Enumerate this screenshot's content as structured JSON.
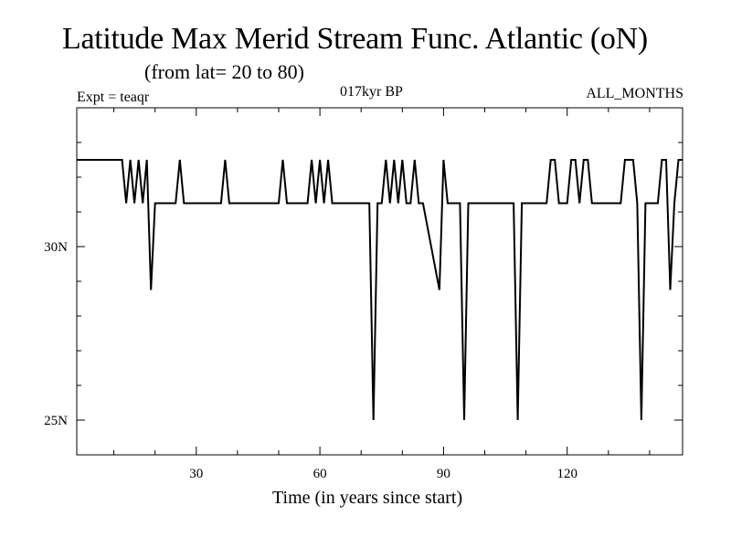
{
  "chart_data": {
    "type": "line",
    "title": "Latitude Max Merid Stream Func. Atlantic (oN)",
    "subtitle": "(from lat= 20 to 80)",
    "annotations": {
      "left": "Expt = teaqr",
      "center": "017kyr BP",
      "right": "ALL_MONTHS"
    },
    "xlabel": "Time (in years since start)",
    "ylabel": "",
    "xlim": [
      1,
      148
    ],
    "ylim": [
      24,
      34
    ],
    "xticks": [
      30,
      60,
      90,
      120
    ],
    "xticklabels": [
      "30",
      "60",
      "90",
      "120"
    ],
    "yticks": [
      25,
      30
    ],
    "yticklabels": [
      "25N",
      "30N"
    ],
    "grid": false,
    "series": [
      {
        "name": "Latitude Max Merid Stream Func",
        "x": [
          1,
          12,
          13,
          14,
          15,
          16,
          17,
          18,
          19,
          20,
          25,
          26,
          27,
          36,
          37,
          38,
          50,
          51,
          52,
          57,
          58,
          59,
          60,
          61,
          62,
          63,
          72,
          73,
          74,
          75,
          76,
          77,
          78,
          79,
          80,
          81,
          82,
          83,
          84,
          85,
          89,
          90,
          91,
          94,
          95,
          96,
          107,
          108,
          109,
          115,
          116,
          117,
          118,
          119,
          120,
          121,
          122,
          123,
          124,
          125,
          126,
          133,
          134,
          135,
          136,
          137,
          138,
          139,
          140,
          141,
          142,
          143,
          144,
          145,
          146,
          147,
          148
        ],
        "values": [
          32.5,
          32.5,
          31.25,
          32.5,
          31.25,
          32.5,
          31.25,
          32.5,
          28.75,
          31.25,
          31.25,
          32.5,
          31.25,
          31.25,
          32.5,
          31.25,
          31.25,
          32.5,
          31.25,
          31.25,
          32.5,
          31.25,
          32.5,
          31.25,
          32.5,
          31.25,
          31.25,
          25,
          31.25,
          31.25,
          32.5,
          31.25,
          32.5,
          31.25,
          32.5,
          31.25,
          31.25,
          32.5,
          31.25,
          31.25,
          28.75,
          32.5,
          31.25,
          31.25,
          25,
          31.25,
          31.25,
          25,
          31.25,
          31.25,
          32.5,
          32.5,
          31.25,
          31.25,
          31.25,
          32.5,
          32.5,
          31.25,
          32.5,
          32.5,
          31.25,
          31.25,
          32.5,
          32.5,
          32.5,
          31.25,
          25,
          31.25,
          31.25,
          31.25,
          31.25,
          32.5,
          32.5,
          28.75,
          31.25,
          32.5,
          32.5
        ]
      }
    ]
  }
}
